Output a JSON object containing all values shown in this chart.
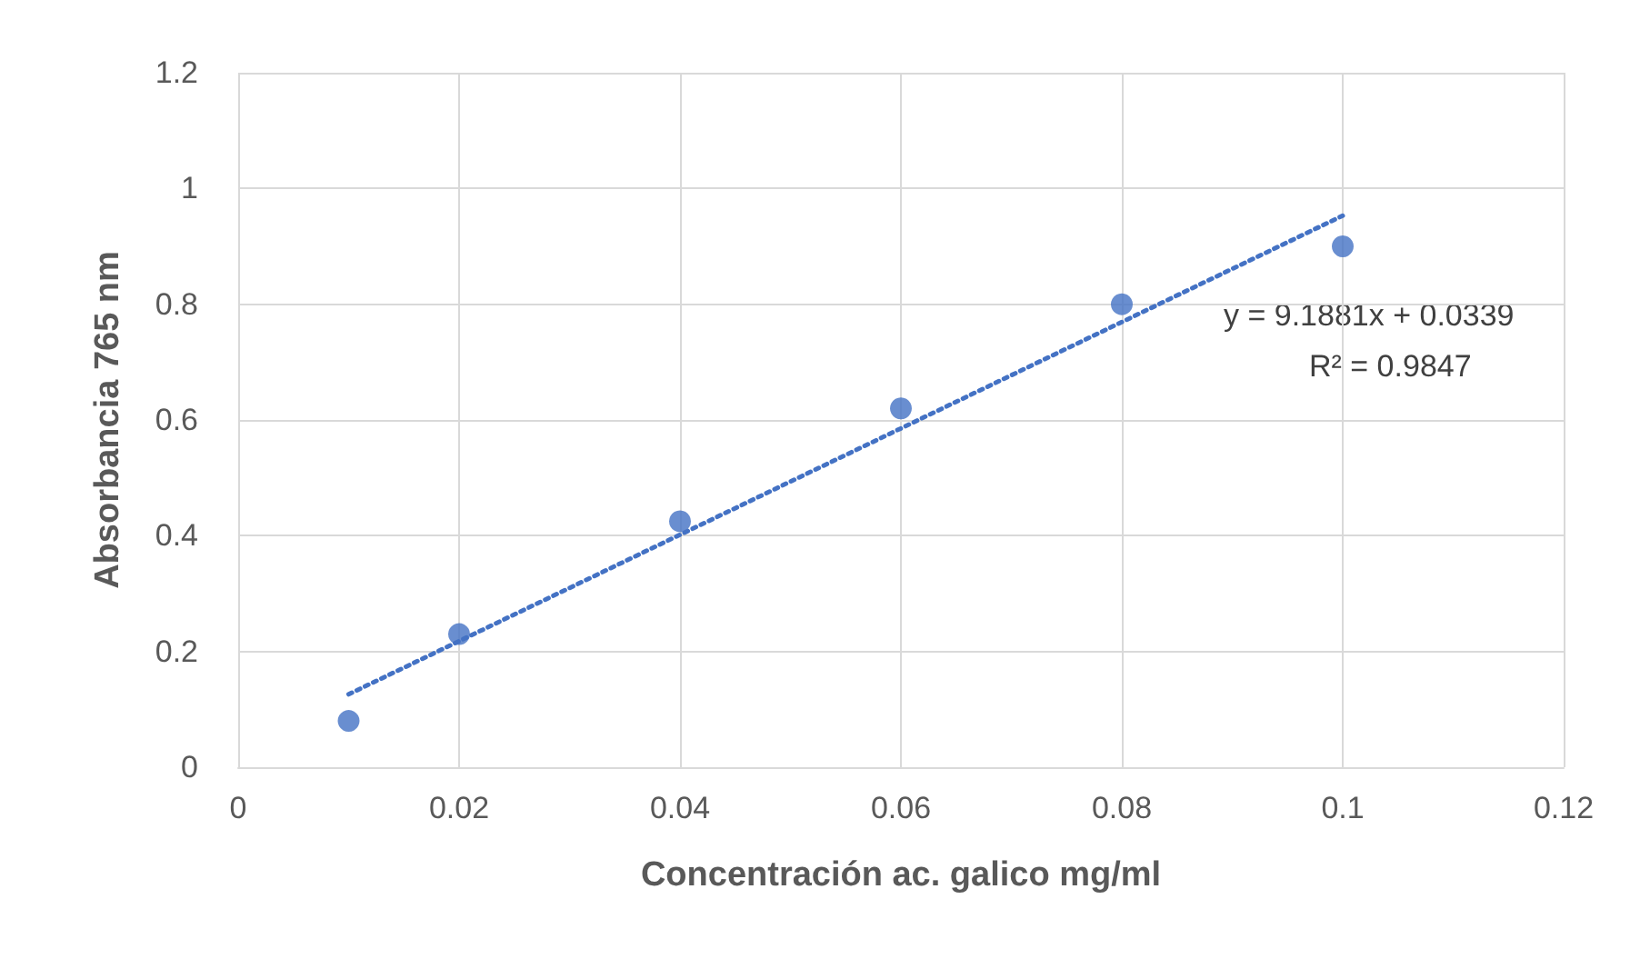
{
  "chart_data": {
    "type": "scatter",
    "xlabel": "Concentración ac. galico mg/ml",
    "ylabel": "Absorbancia 765 nm",
    "series": [
      {
        "color": "#4472c4",
        "x": [
          0.01,
          0.02,
          0.04,
          0.06,
          0.08,
          0.1
        ],
        "values": [
          0.08,
          0.23,
          0.425,
          0.62,
          0.8,
          0.9
        ],
        "marker": "circle"
      },
      {
        "type": "line",
        "color": "#4472c4",
        "x": [
          0.01,
          0.1
        ],
        "values": [
          0.126,
          0.953
        ],
        "line_style": "dotted",
        "marker": "none"
      }
    ],
    "xlim": [
      0,
      0.12
    ],
    "xticks": [
      0,
      0.02,
      0.04,
      0.06,
      0.08,
      0.1,
      0.12
    ],
    "ylim": [
      0,
      1.2
    ],
    "yticks": [
      0,
      0.2,
      0.4,
      0.6,
      0.8,
      1,
      1.2
    ],
    "grid": true,
    "annotations": [
      "y = 9.1881x + 0.0339",
      "R² = 0.9847"
    ]
  }
}
